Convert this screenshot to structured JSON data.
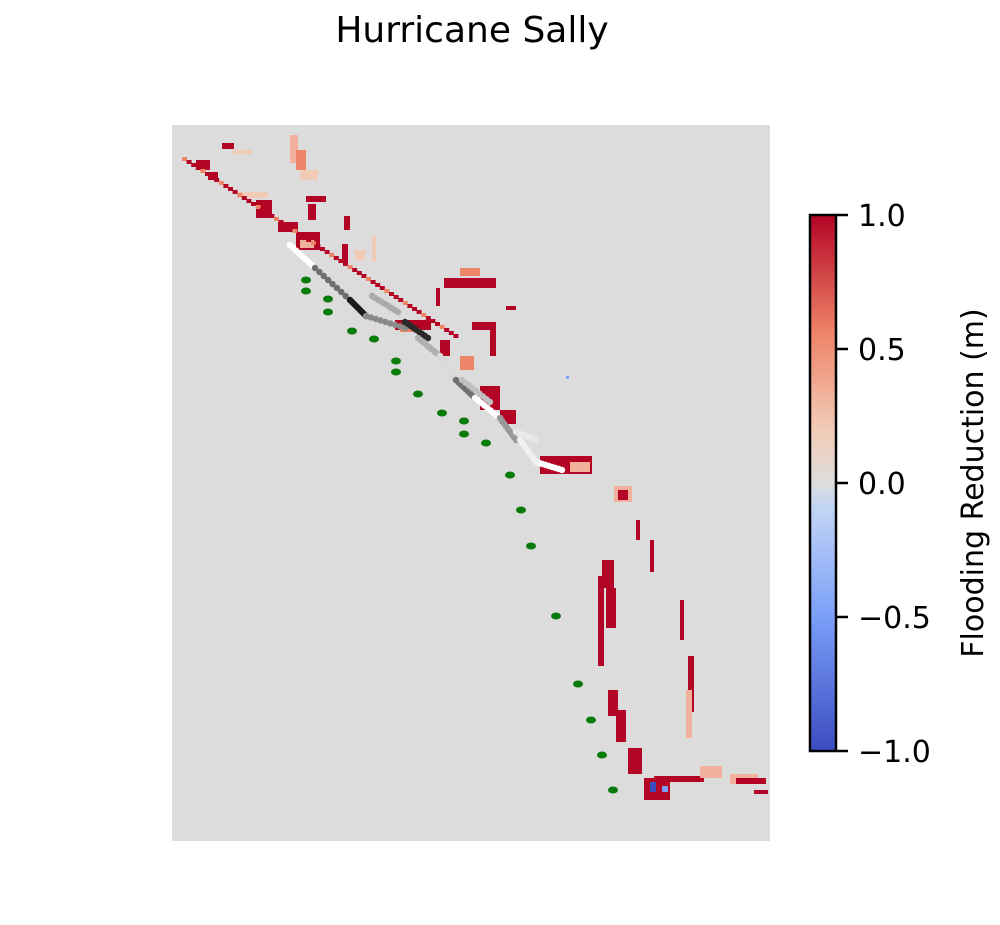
{
  "chart_data": {
    "type": "heatmap",
    "title": "Hurricane Sally",
    "colorbar": {
      "label": "Flooding Reduction (m)",
      "range": [
        -1.0,
        1.0
      ],
      "ticks": [
        1.0,
        0.5,
        0.0,
        -0.5,
        -1.0
      ],
      "tick_labels": [
        "1.0",
        "0.5",
        "0.0",
        "−0.5",
        "−1.0"
      ],
      "colormap": [
        "#3b4cc0",
        "#7b9ff9",
        "#c0d4f5",
        "#dddcdc",
        "#f2cbb7",
        "#ee8468",
        "#b40426"
      ]
    },
    "background_color": "#dddcdc",
    "grid": false,
    "axes_visible": false,
    "series": [
      {
        "values": "positive flooding reduction cells (red)"
      },
      {
        "values": "observation points (green)"
      },
      {
        "values": "coastline points (grayscale)"
      }
    ]
  }
}
